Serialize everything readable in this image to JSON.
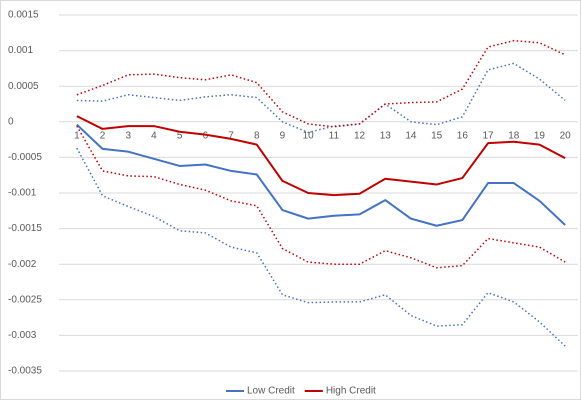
{
  "chart_data": {
    "type": "line",
    "categories": [
      1,
      2,
      3,
      4,
      5,
      6,
      7,
      8,
      9,
      10,
      11,
      12,
      13,
      14,
      15,
      16,
      17,
      18,
      19,
      20
    ],
    "ylim": [
      -0.0035,
      0.0015
    ],
    "yticks": [
      -0.0035,
      -0.003,
      -0.0025,
      -0.002,
      -0.0015,
      -0.001,
      -0.0005,
      0,
      0.0005,
      0.001,
      0.0015
    ],
    "grid": true,
    "legend": "bottom",
    "series": [
      {
        "name": "Low Credit",
        "color": "#4472c4",
        "line_style": "solid",
        "values": [
          -4e-05,
          -0.00038,
          -0.00042,
          -0.00052,
          -0.00062,
          -0.0006,
          -0.00069,
          -0.00074,
          -0.00124,
          -0.00136,
          -0.00132,
          -0.0013,
          -0.0011,
          -0.00136,
          -0.00146,
          -0.00138,
          -0.00086,
          -0.00086,
          -0.00111,
          -0.00145
        ]
      },
      {
        "color": "#4472c4",
        "line_style": "dotted",
        "values": [
          0.0003,
          0.00029,
          0.00038,
          0.00034,
          0.0003,
          0.00035,
          0.00038,
          0.00034,
          0,
          -0.00015,
          -6e-05,
          -3e-05,
          0.00025,
          0,
          -4e-05,
          7e-05,
          0.00073,
          0.00082,
          0.0006,
          0.0003
        ]
      },
      {
        "color": "#4472c4",
        "line_style": "dotted",
        "values": [
          -0.00037,
          -0.00104,
          -0.00119,
          -0.00133,
          -0.00153,
          -0.00156,
          -0.00176,
          -0.00184,
          -0.00243,
          -0.00254,
          -0.00253,
          -0.00253,
          -0.00243,
          -0.00272,
          -0.00287,
          -0.00285,
          -0.0024,
          -0.00253,
          -0.00281,
          -0.00315
        ]
      },
      {
        "name": "High Credit",
        "color": "#c00000",
        "line_style": "solid",
        "values": [
          8e-05,
          -0.0001,
          -6e-05,
          -6e-05,
          -0.00014,
          -0.00018,
          -0.00024,
          -0.00032,
          -0.00083,
          -0.001,
          -0.00103,
          -0.00101,
          -0.0008,
          -0.00084,
          -0.00088,
          -0.00079,
          -0.0003,
          -0.00028,
          -0.00032,
          -0.00051
        ]
      },
      {
        "color": "#c00000",
        "line_style": "dotted",
        "values": [
          0.00038,
          0.00051,
          0.00066,
          0.00067,
          0.00062,
          0.00059,
          0.00066,
          0.00055,
          0.00014,
          -3e-05,
          -7e-05,
          -3e-05,
          0.00025,
          0.00027,
          0.00028,
          0.00046,
          0.00105,
          0.00114,
          0.00111,
          0.00094
        ]
      },
      {
        "color": "#c00000",
        "line_style": "dotted",
        "values": [
          -6e-05,
          -0.00069,
          -0.00076,
          -0.00077,
          -0.00088,
          -0.00096,
          -0.00111,
          -0.00118,
          -0.00178,
          -0.00197,
          -0.002,
          -0.002,
          -0.00181,
          -0.00191,
          -0.00205,
          -0.00202,
          -0.00164,
          -0.0017,
          -0.00176,
          -0.00197
        ]
      }
    ]
  }
}
